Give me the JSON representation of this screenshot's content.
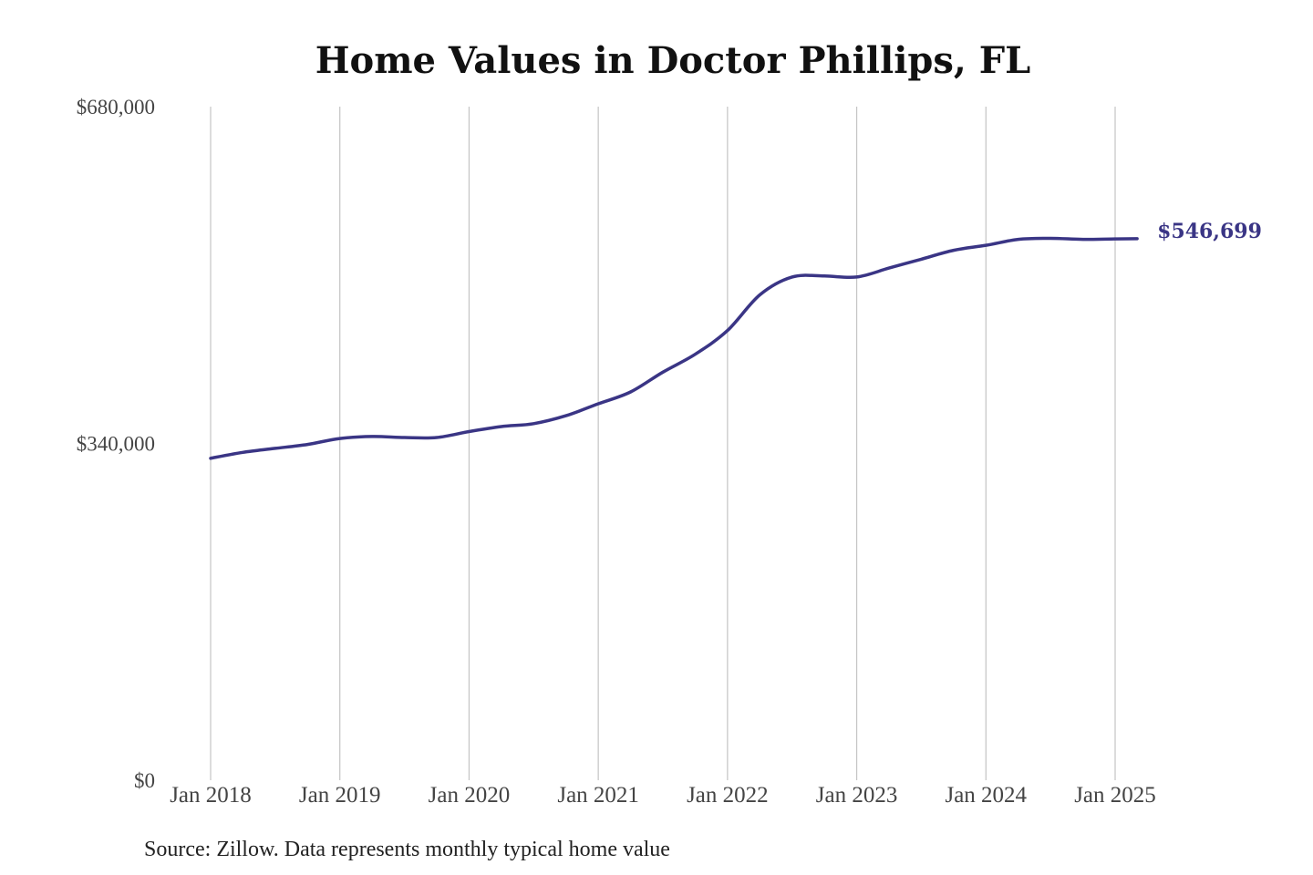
{
  "chart_data": {
    "type": "line",
    "title": "Home Values in Doctor Phillips, FL",
    "xlabel": "",
    "ylabel": "",
    "ylim": [
      0,
      680000
    ],
    "yticks": [
      {
        "value": 0,
        "label": "$0"
      },
      {
        "value": 340000,
        "label": "$340,000"
      },
      {
        "value": 680000,
        "label": "$680,000"
      }
    ],
    "xticks": [
      {
        "value": 2018.0,
        "label": "Jan 2018"
      },
      {
        "value": 2019.0,
        "label": "Jan 2019"
      },
      {
        "value": 2020.0,
        "label": "Jan 2020"
      },
      {
        "value": 2021.0,
        "label": "Jan 2021"
      },
      {
        "value": 2022.0,
        "label": "Jan 2022"
      },
      {
        "value": 2023.0,
        "label": "Jan 2023"
      },
      {
        "value": 2024.0,
        "label": "Jan 2024"
      },
      {
        "value": 2025.0,
        "label": "Jan 2025"
      }
    ],
    "grid": "vertical",
    "legend": "none",
    "color": "#3a3585",
    "series": [
      {
        "points": [
          [
            2018.0,
            325000
          ],
          [
            2018.25,
            331000
          ],
          [
            2018.5,
            335000
          ],
          [
            2018.75,
            339000
          ],
          [
            2019.0,
            345000
          ],
          [
            2019.25,
            347000
          ],
          [
            2019.5,
            346000
          ],
          [
            2019.75,
            346000
          ],
          [
            2020.0,
            352000
          ],
          [
            2020.25,
            357000
          ],
          [
            2020.5,
            360000
          ],
          [
            2020.75,
            368000
          ],
          [
            2021.0,
            380000
          ],
          [
            2021.25,
            392000
          ],
          [
            2021.5,
            412000
          ],
          [
            2021.75,
            430000
          ],
          [
            2022.0,
            454000
          ],
          [
            2022.25,
            490000
          ],
          [
            2022.5,
            508000
          ],
          [
            2022.75,
            509000
          ],
          [
            2023.0,
            508000
          ],
          [
            2023.25,
            517000
          ],
          [
            2023.5,
            526000
          ],
          [
            2023.75,
            535000
          ],
          [
            2024.0,
            540000
          ],
          [
            2024.25,
            546000
          ],
          [
            2024.5,
            547000
          ],
          [
            2024.75,
            546000
          ],
          [
            2025.0,
            546500
          ],
          [
            2025.17,
            546699
          ]
        ]
      }
    ],
    "end_label": "$546,699"
  },
  "source_note": "Source: Zillow. Data represents monthly typical home value"
}
